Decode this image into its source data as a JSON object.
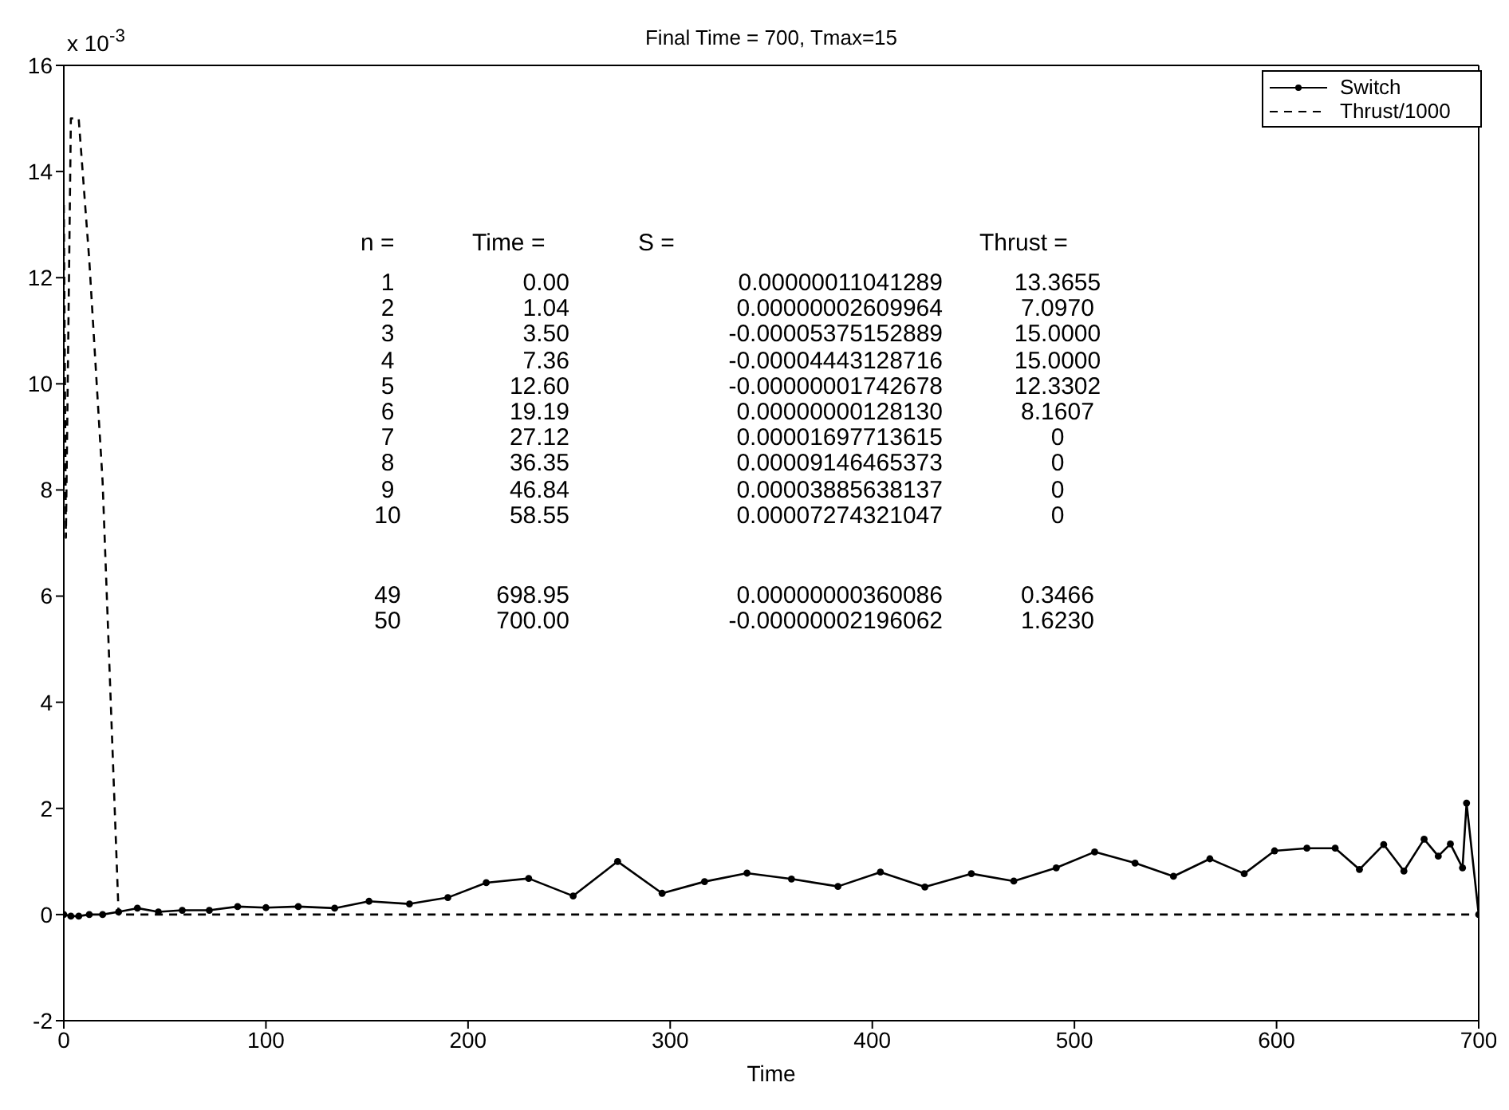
{
  "chart_data": {
    "type": "line",
    "title": "Final Time = 700, Tmax=15",
    "xlabel": "Time",
    "annotations": [
      "x 10$^{-3}$",
      "n =",
      "Time =",
      "S =",
      "Thrust =",
      "1",
      "0.00",
      "0.00000011041289",
      "13.3655",
      "2",
      "1.04",
      "0.00000002609964",
      "7.0970",
      "3",
      "3.50",
      "-0.00005375152889",
      "15.0000",
      "4",
      "7.36",
      "-0.00004443128716",
      "15.0000",
      "5",
      "12.60",
      "-0.00000001742678",
      "12.3302",
      "6",
      "19.19",
      "0.00000000128130",
      "8.1607",
      "7",
      "27.12",
      "0.00001697713615",
      "0",
      "8",
      "36.35",
      "0.00009146465373",
      "0",
      "9",
      "46.84",
      "0.00003885638137",
      "0",
      "10",
      "58.55",
      "0.00007274321047",
      "0",
      "49",
      "698.95",
      "0.00000000360086",
      "0.3466",
      "50",
      "700.00",
      "-0.00000002196062",
      "1.6230"
    ],
    "xlim": [
      0,
      700
    ],
    "xticks": [
      0,
      100,
      200,
      300,
      400,
      500,
      600,
      700
    ],
    "ylim": [
      -2,
      16
    ],
    "yticks": [
      -2,
      0,
      2,
      4,
      6,
      8,
      10,
      12,
      14,
      16
    ],
    "grid": false,
    "legend": "top right",
    "series": [
      {
        "name": "Switch",
        "color": "#000000",
        "marker": "circle",
        "line_style": "solid",
        "x": [
          0,
          3.5,
          7.4,
          12.6,
          19.2,
          27.1,
          36.4,
          46.8,
          58.6,
          72,
          86,
          100,
          116,
          134,
          151,
          171,
          190,
          209,
          230,
          252,
          274,
          296,
          317,
          338,
          360,
          383,
          404,
          426,
          449,
          470,
          491,
          510,
          530,
          549,
          567,
          584,
          599,
          615,
          629,
          641,
          653,
          663,
          673,
          680,
          686,
          692,
          694,
          700
        ],
        "values": [
          0,
          -0.03,
          -0.03,
          0,
          0,
          0.05,
          0.12,
          0.05,
          0.08,
          0.08,
          0.15,
          0.13,
          0.15,
          0.12,
          0.25,
          0.2,
          0.32,
          0.6,
          0.68,
          0.35,
          1.0,
          0.4,
          0.62,
          0.78,
          0.67,
          0.53,
          0.8,
          0.52,
          0.77,
          0.63,
          0.88,
          1.18,
          0.97,
          0.72,
          1.05,
          0.77,
          1.2,
          1.25,
          1.25,
          0.85,
          1.32,
          0.82,
          1.42,
          1.1,
          1.33,
          0.88,
          2.1,
          0
        ]
      },
      {
        "name": "Thrust/1000",
        "color": "#000000",
        "marker": "none",
        "line_style": "dashed",
        "x": [
          0,
          1.04,
          3.5,
          7.36,
          12.6,
          19.19,
          27.12,
          700
        ],
        "values": [
          13.37,
          7.1,
          15,
          15,
          12.33,
          8.16,
          0,
          0
        ]
      }
    ]
  }
}
